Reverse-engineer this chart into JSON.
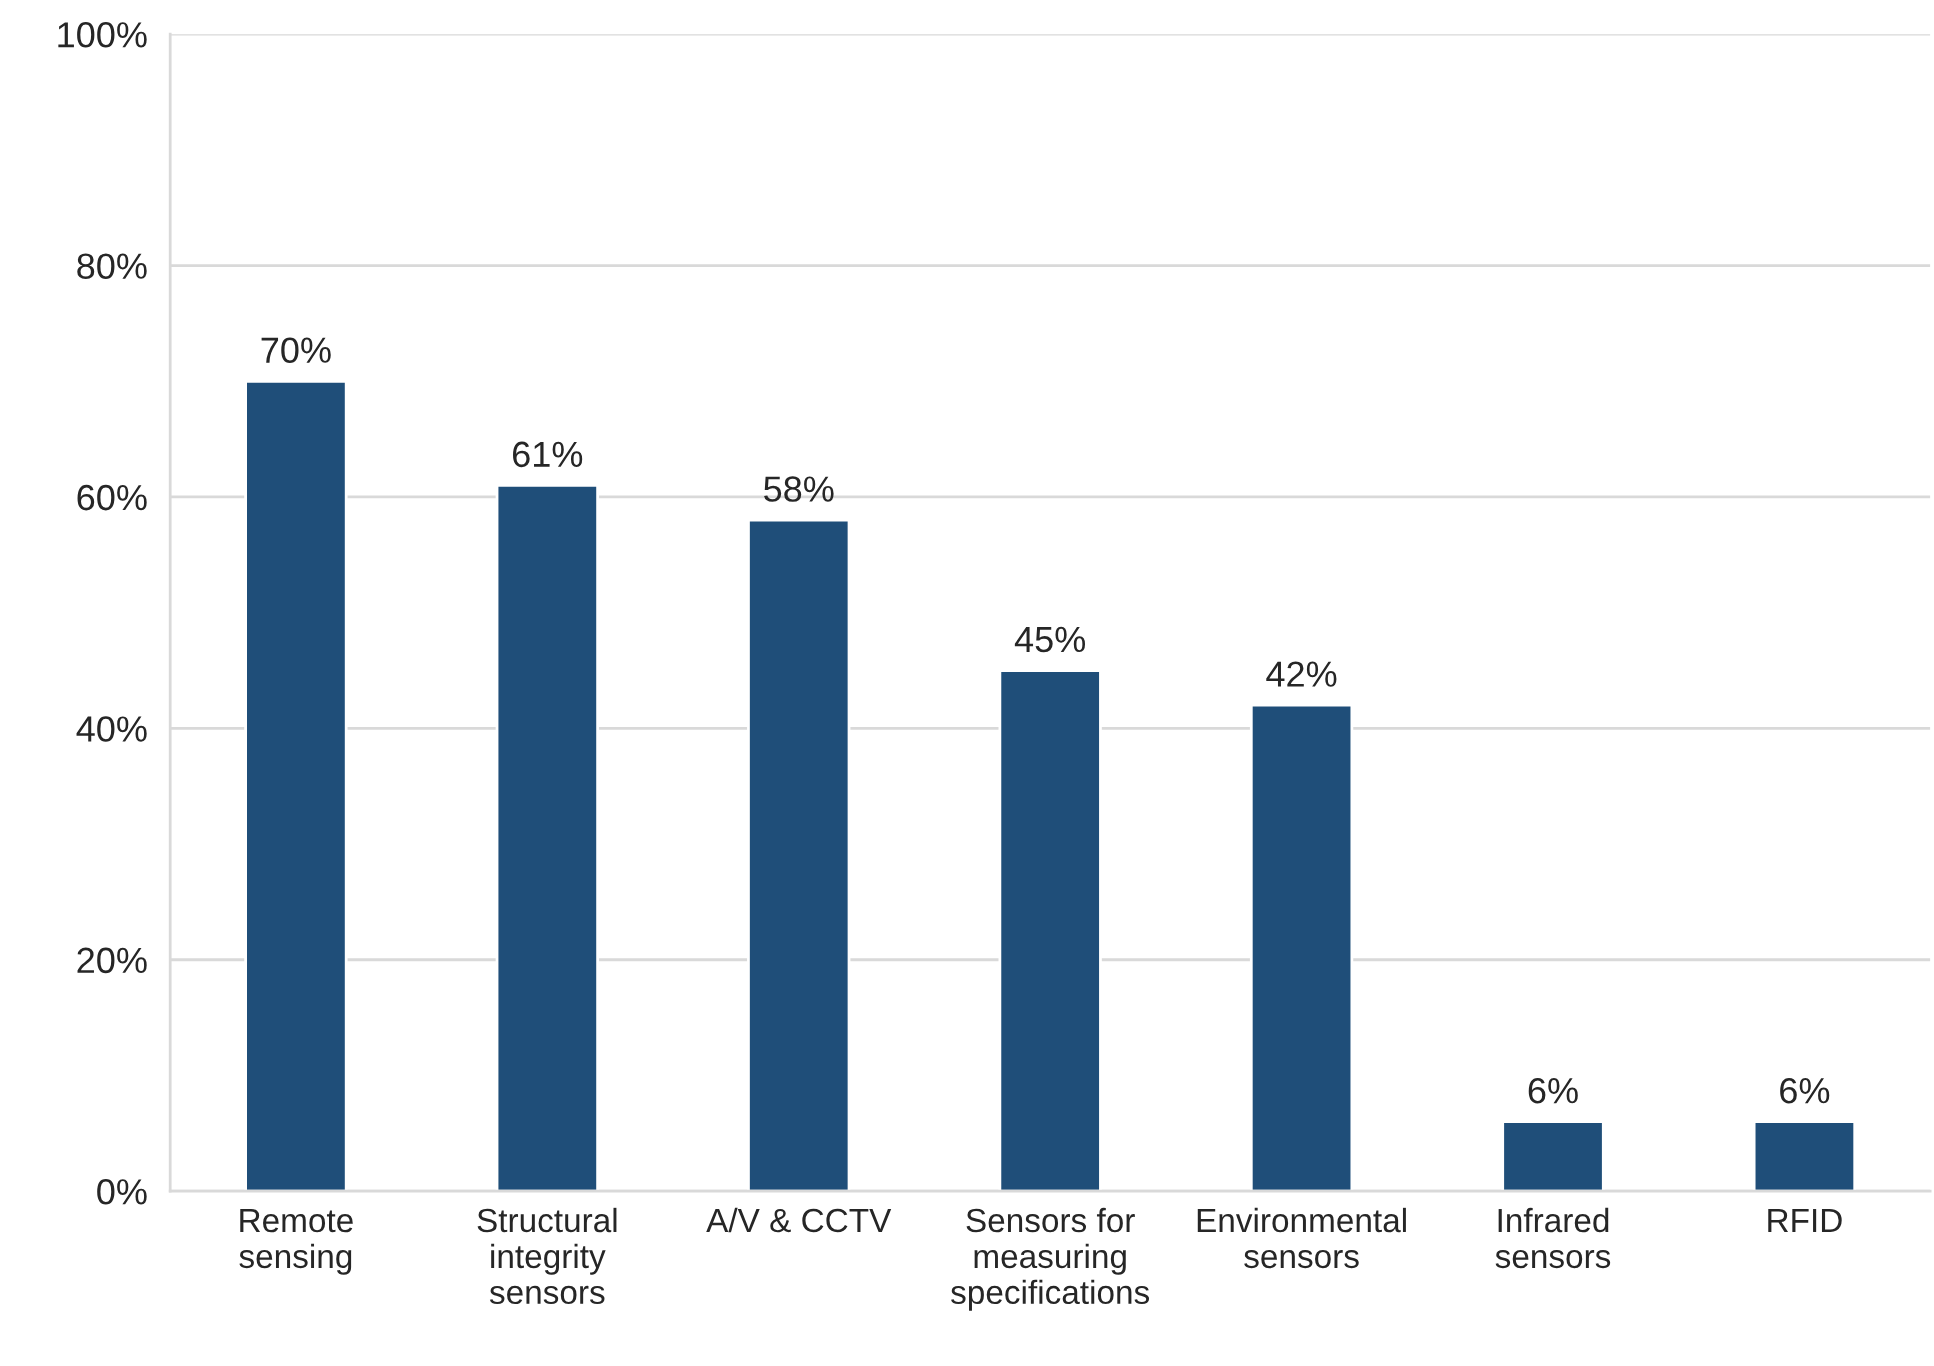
{
  "chart_data": {
    "type": "bar",
    "categories": [
      "Remote sensing",
      "Structural integrity sensors",
      "A/V & CCTV",
      "Sensors for measuring specifications",
      "Environmental sensors",
      "Infrared sensors",
      "RFID"
    ],
    "values": [
      70,
      61,
      58,
      45,
      42,
      6,
      6
    ],
    "value_labels": [
      "70%",
      "61%",
      "58%",
      "45%",
      "42%",
      "6%",
      "6%"
    ],
    "color": "#1f4e79",
    "ylim": [
      0,
      100
    ],
    "yticks": [
      {
        "value": 0,
        "label": "0%"
      },
      {
        "value": 20,
        "label": "20%"
      },
      {
        "value": 40,
        "label": "40%"
      },
      {
        "value": 60,
        "label": "60%"
      },
      {
        "value": 80,
        "label": "80%"
      },
      {
        "value": 100,
        "label": "100%"
      }
    ],
    "grid": "y",
    "legend": false
  }
}
